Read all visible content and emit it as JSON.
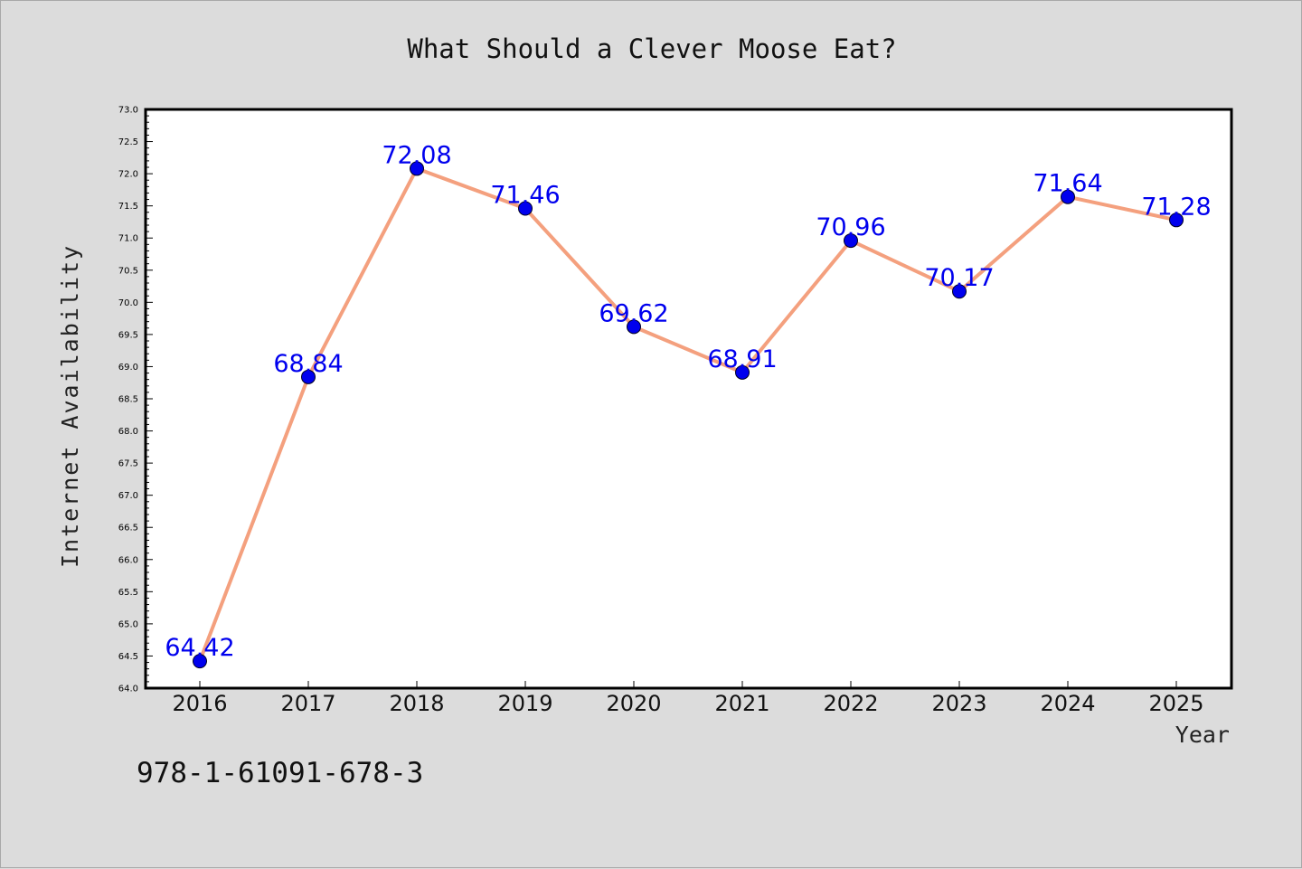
{
  "chart_data": {
    "type": "line",
    "title": "What Should a Clever Moose Eat?",
    "xlabel": "Year",
    "ylabel": "Internet Availability",
    "categories": [
      "2016",
      "2017",
      "2018",
      "2019",
      "2020",
      "2021",
      "2022",
      "2023",
      "2024",
      "2025"
    ],
    "values": [
      64.42,
      68.84,
      72.08,
      71.46,
      69.62,
      68.91,
      70.96,
      70.17,
      71.64,
      71.28
    ],
    "data_labels": [
      "64.42",
      "68.84",
      "72.08",
      "71.46",
      "69.62",
      "68.91",
      "70.96",
      "70.17",
      "71.64",
      "71.28"
    ],
    "ylim": [
      64.0,
      73.0
    ],
    "yticks": [
      "64.0",
      "64.5",
      "65.0",
      "65.5",
      "66.0",
      "66.5",
      "67.0",
      "67.5",
      "68.0",
      "68.5",
      "69.0",
      "69.5",
      "70.0",
      "70.5",
      "71.0",
      "71.5",
      "72.0",
      "72.5",
      "73.0"
    ],
    "grid": false,
    "line_color": "#f4a07e",
    "marker_color": "#0000ee",
    "label_color": "#0000ee"
  },
  "annotation": "978-1-61091-678-3"
}
